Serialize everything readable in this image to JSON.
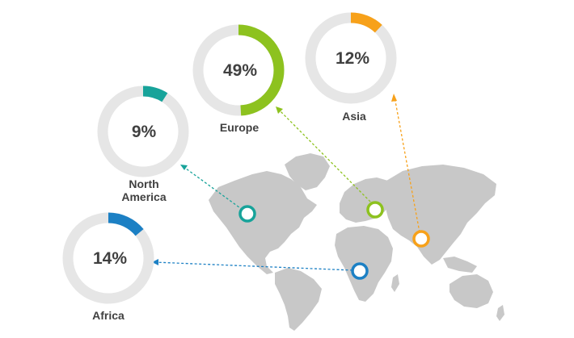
{
  "chart_data": {
    "type": "donut-map",
    "regions": [
      {
        "name": "Europe",
        "name_lines": [
          "Europe"
        ],
        "value": 49,
        "label": "49%",
        "color": "#8dc21f"
      },
      {
        "name": "Asia",
        "name_lines": [
          "Asia"
        ],
        "value": 12,
        "label": "12%",
        "color": "#f7a11a"
      },
      {
        "name": "North America",
        "name_lines": [
          "North",
          "America"
        ],
        "value": 9,
        "label": "9%",
        "color": "#17a39a"
      },
      {
        "name": "Africa",
        "name_lines": [
          "Africa"
        ],
        "value": 14,
        "label": "14%",
        "color": "#1c80c4"
      }
    ],
    "track_color": "#e6e6e6",
    "map_color": "#c8c8c8"
  }
}
